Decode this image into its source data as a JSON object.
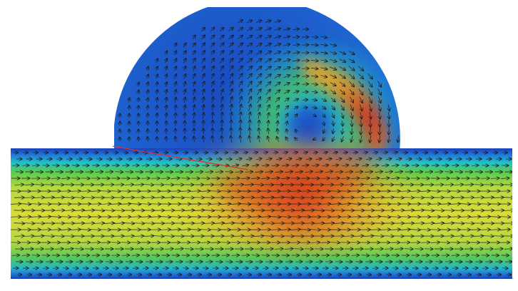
{
  "figure": {
    "kind": "cfd-velocity-field",
    "geometry": "channel-with-semicircular-cavity",
    "colormap": "rainbow",
    "colormap_stops": [
      "#1a3fb8",
      "#1f78d8",
      "#23c1c6",
      "#3cc85a",
      "#d6dc3c",
      "#e8a02a",
      "#d8301c"
    ],
    "vector_color": "#1a1a1a",
    "annotation_line_color": "#e03030",
    "background_color": "#ffffff"
  }
}
